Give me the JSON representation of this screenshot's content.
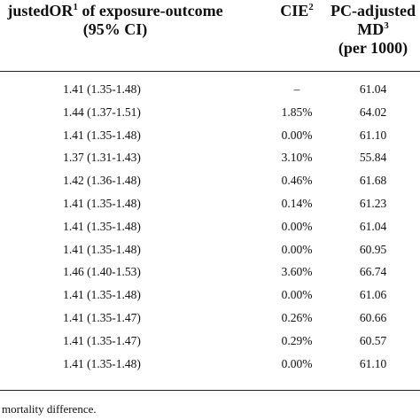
{
  "header": {
    "col1": {
      "line1_pre": "justedOR",
      "line1_sup": "1",
      "line1_post": " of exposure-outcome",
      "line2": "(95% CI)"
    },
    "col2": {
      "text": "CIE",
      "sup": "2"
    },
    "col3": {
      "line1": "PC-adjusted",
      "line2_text": "MD",
      "line2_sup": "3",
      "line3": "(per 1000)"
    }
  },
  "rows": [
    {
      "or_ci": "1.41 (1.35-1.48)",
      "cie": "–",
      "md": "61.04"
    },
    {
      "or_ci": "1.44 (1.37-1.51)",
      "cie": "1.85%",
      "md": "64.02"
    },
    {
      "or_ci": "1.41 (1.35-1.48)",
      "cie": "0.00%",
      "md": "61.10"
    },
    {
      "or_ci": "1.37 (1.31-1.43)",
      "cie": "3.10%",
      "md": "55.84"
    },
    {
      "or_ci": "1.42 (1.36-1.48)",
      "cie": "0.46%",
      "md": "61.68"
    },
    {
      "or_ci": "1.41 (1.35-1.48)",
      "cie": "0.14%",
      "md": "61.23"
    },
    {
      "or_ci": "1.41 (1.35-1.48)",
      "cie": "0.00%",
      "md": "61.04"
    },
    {
      "or_ci": "1.41 (1.35-1.48)",
      "cie": "0.00%",
      "md": "60.95"
    },
    {
      "or_ci": "1.46 (1.40-1.53)",
      "cie": "3.60%",
      "md": "66.74"
    },
    {
      "or_ci": "1.41 (1.35-1.48)",
      "cie": "0.00%",
      "md": "61.06"
    },
    {
      "or_ci": "1.41 (1.35-1.47)",
      "cie": "0.26%",
      "md": "60.66"
    },
    {
      "or_ci": "1.41 (1.35-1.47)",
      "cie": "0.29%",
      "md": "60.57"
    },
    {
      "or_ci": "1.41 (1.35-1.48)",
      "cie": "0.00%",
      "md": "61.10"
    }
  ],
  "footnote": "mortality difference."
}
